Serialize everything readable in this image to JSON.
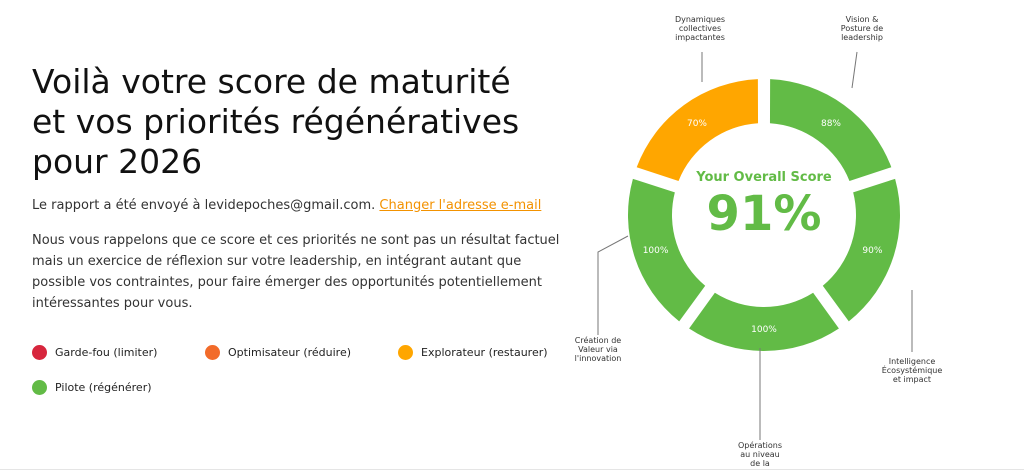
{
  "header": {
    "title": "Voilà votre score de maturité et vos priorités régénératives pour 2026"
  },
  "email_notice": {
    "text": "Le rapport a été envoyé à levidepoches@gmail.com.",
    "link": "Changer l'adresse e-mail"
  },
  "paragraph": "Nous vous rappelons que ce score et ces priorités ne sont pas un résultat factuel mais un exercice de réflexion sur votre leadership, en intégrant autant que possible vos contraintes, pour faire émerger des opportunités potentiellement intéressantes pour vous.",
  "legend": [
    {
      "label": "Garde-fou (limiter)",
      "color": "#d7263d"
    },
    {
      "label": "Optimisateur (réduire)",
      "color": "#f26b2a"
    },
    {
      "label": "Explorateur (restaurer)",
      "color": "#ffa600"
    },
    {
      "label": "Pilote (régénérer)",
      "color": "#62bb46"
    }
  ],
  "score_chart": {
    "type": "donut",
    "center_title": "Your Overall Score",
    "overall": {
      "value": 91,
      "label": "91%"
    },
    "segments": [
      {
        "label": [
          "Vision &",
          "Posture de",
          "leadership"
        ],
        "value": 88,
        "value_label": "88%",
        "color": "#62bb46"
      },
      {
        "label": [
          "Intelligence",
          "Écosystémique",
          "et impact"
        ],
        "value": 90,
        "value_label": "90%",
        "color": "#62bb46"
      },
      {
        "label": [
          "Opérations",
          "au niveau",
          "de la"
        ],
        "value": 100,
        "value_label": "100%",
        "color": "#62bb46"
      },
      {
        "label": [
          "Création de",
          "Valeur via",
          "l'innovation"
        ],
        "value": 100,
        "value_label": "100%",
        "color": "#62bb46"
      },
      {
        "label": [
          "Dynamiques",
          "collectives",
          "impactantes"
        ],
        "value": 70,
        "value_label": "70%",
        "color": "#ffa600"
      }
    ]
  }
}
